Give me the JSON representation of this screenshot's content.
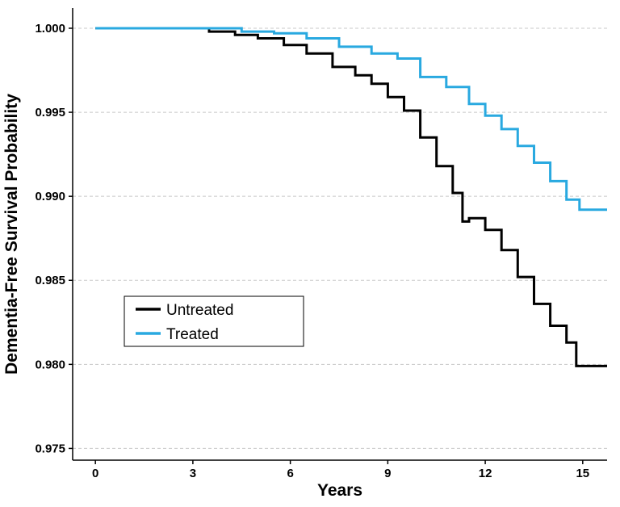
{
  "chart_data": {
    "type": "line",
    "title": "",
    "xlabel": "Years",
    "ylabel": "Dementia-Free Survival Probability",
    "xlim": [
      -0.7,
      15.75
    ],
    "ylim": [
      0.9743,
      1.0012
    ],
    "x_ticks": [
      0,
      3,
      6,
      9,
      12,
      15
    ],
    "x_tick_labels": [
      "0",
      "3",
      "6",
      "9",
      "12",
      "15"
    ],
    "y_ticks": [
      0.975,
      0.98,
      0.985,
      0.99,
      0.995,
      1.0
    ],
    "y_tick_labels": [
      "0.975",
      "0.980",
      "0.985",
      "0.990",
      "0.995",
      "1.000"
    ],
    "grid": "horizontal dashed",
    "legend_position": "center-left",
    "series": [
      {
        "name": "Untreated",
        "color": "#000000",
        "x": [
          0,
          2.5,
          3.5,
          4.3,
          5.0,
          5.8,
          6.5,
          7.3,
          8.0,
          8.5,
          9.0,
          9.5,
          10.0,
          10.5,
          11.0,
          11.3,
          11.5,
          12.0,
          12.5,
          13.0,
          13.5,
          14.0,
          14.5,
          14.8,
          15.75
        ],
        "y": [
          1.0,
          1.0,
          0.9998,
          0.9996,
          0.9994,
          0.999,
          0.9985,
          0.9977,
          0.9972,
          0.9967,
          0.9959,
          0.9951,
          0.9935,
          0.9918,
          0.9902,
          0.9885,
          0.9887,
          0.988,
          0.9868,
          0.9852,
          0.9836,
          0.9823,
          0.9813,
          0.9799,
          0.9799
        ]
      },
      {
        "name": "Treated",
        "color": "#29a9e0",
        "x": [
          0,
          3.0,
          4.5,
          5.5,
          6.5,
          7.5,
          8.5,
          9.3,
          10.0,
          10.8,
          11.5,
          12.0,
          12.5,
          13.0,
          13.5,
          14.0,
          14.5,
          14.9,
          15.75
        ],
        "y": [
          1.0,
          1.0,
          0.9998,
          0.9997,
          0.9994,
          0.9989,
          0.9985,
          0.9982,
          0.9971,
          0.9965,
          0.9955,
          0.9948,
          0.994,
          0.993,
          0.992,
          0.9909,
          0.9898,
          0.9892,
          0.9892
        ]
      }
    ]
  }
}
